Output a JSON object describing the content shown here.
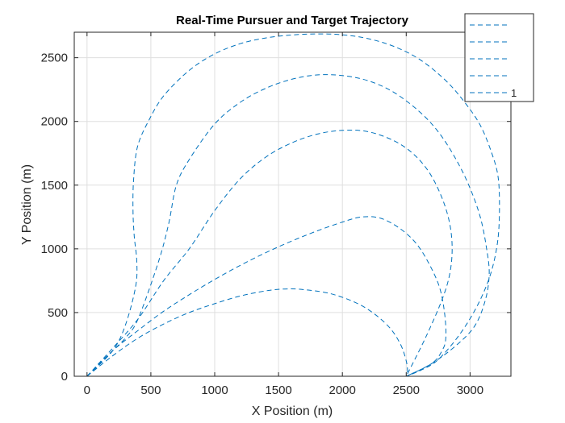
{
  "chart_data": {
    "type": "line",
    "title": "Real-Time Pursuer and Target Trajectory",
    "xlabel": "X Position (m)",
    "ylabel": "Y Position (m)",
    "xlim": [
      -100,
      3320
    ],
    "ylim": [
      0,
      2700
    ],
    "xticks": [
      0,
      500,
      1000,
      1500,
      2000,
      2500,
      3000
    ],
    "yticks": [
      0,
      500,
      1000,
      1500,
      2000,
      2500
    ],
    "grid": true,
    "line_style": "dashed",
    "color": "#0072BD",
    "legend": {
      "position": "top-right",
      "entries": [
        "",
        "",
        "",
        "",
        "1"
      ]
    },
    "series": [
      {
        "x": [
          0,
          200,
          300,
          380,
          390,
          370,
          360,
          365,
          395,
          480,
          600,
          800,
          1000,
          1200,
          1400,
          1600,
          1800,
          2000,
          2200,
          2400,
          2600,
          2800,
          2950,
          3080,
          3170,
          3220,
          3230,
          3215,
          3160,
          3060,
          2920,
          2750,
          2620,
          2500
        ],
        "y": [
          0,
          200,
          400,
          700,
          900,
          1100,
          1300,
          1550,
          1800,
          2000,
          2200,
          2400,
          2530,
          2610,
          2655,
          2678,
          2687,
          2680,
          2650,
          2590,
          2490,
          2330,
          2160,
          1970,
          1750,
          1560,
          1300,
          1050,
          800,
          560,
          330,
          130,
          50,
          0
        ]
      },
      {
        "x": [
          0,
          200,
          300,
          400,
          560,
          640,
          700,
          800,
          1000,
          1200,
          1400,
          1600,
          1800,
          2000,
          2200,
          2400,
          2600,
          2750,
          2880,
          2990,
          3080,
          3130,
          3150,
          3120,
          3040,
          2900,
          2700,
          2500
        ],
        "y": [
          0,
          200,
          300,
          450,
          900,
          1200,
          1500,
          1700,
          1980,
          2150,
          2260,
          2330,
          2365,
          2360,
          2320,
          2230,
          2080,
          1920,
          1720,
          1500,
          1250,
          1000,
          800,
          600,
          400,
          250,
          100,
          0
        ]
      },
      {
        "x": [
          0,
          200,
          400,
          600,
          800,
          1000,
          1200,
          1400,
          1600,
          1800,
          2000,
          2200,
          2400,
          2550,
          2680,
          2780,
          2840,
          2860,
          2840,
          2780,
          2650,
          2500
        ],
        "y": [
          0,
          220,
          450,
          750,
          1000,
          1300,
          1550,
          1720,
          1830,
          1900,
          1930,
          1920,
          1850,
          1750,
          1600,
          1400,
          1200,
          1000,
          800,
          600,
          300,
          0
        ]
      },
      {
        "x": [
          0,
          200,
          400,
          600,
          800,
          1000,
          1200,
          1400,
          1600,
          1800,
          2000,
          2150,
          2300,
          2450,
          2580,
          2680,
          2760,
          2800,
          2810,
          2780,
          2700,
          2500
        ],
        "y": [
          0,
          200,
          360,
          510,
          640,
          760,
          870,
          970,
          1060,
          1140,
          1210,
          1250,
          1240,
          1160,
          1040,
          880,
          700,
          500,
          300,
          200,
          100,
          0
        ]
      },
      {
        "x": [
          0,
          200,
          400,
          600,
          800,
          1000,
          1200,
          1400,
          1550,
          1700,
          1900,
          2100,
          2250,
          2380,
          2460,
          2500,
          2510,
          2505
        ],
        "y": [
          0,
          160,
          300,
          410,
          500,
          570,
          630,
          670,
          685,
          680,
          650,
          580,
          490,
          370,
          240,
          120,
          50,
          0
        ]
      }
    ]
  }
}
